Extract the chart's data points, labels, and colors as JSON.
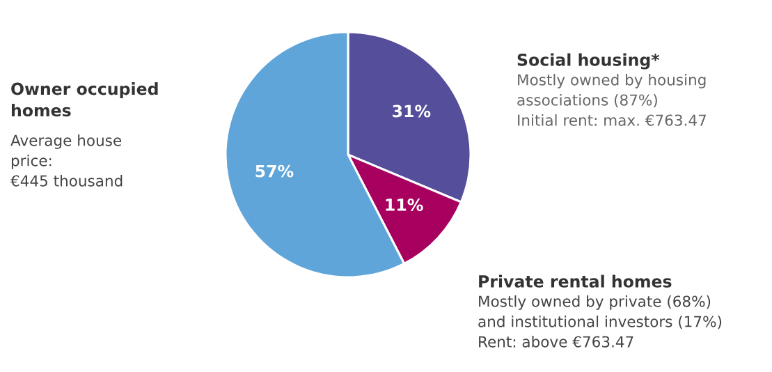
{
  "chart_data": {
    "type": "pie",
    "categories": [
      "Social housing*",
      "Private rental homes",
      "Owner occupied\nhomes"
    ],
    "values": [
      31,
      11,
      57
    ],
    "colors": [
      "#554e9a",
      "#a8005f",
      "#5fa5d9"
    ],
    "value_labels": [
      "31%",
      "11%",
      "57%"
    ],
    "annotations": [
      "Mostly owned by housing\nassociations (87%)\nInitial rent: max. €763.47",
      "Mostly owned by private (68%)\nand institutional investors (17%)\nRent: above €763.47",
      "Average house\nprice:\n€445 thousand"
    ]
  }
}
